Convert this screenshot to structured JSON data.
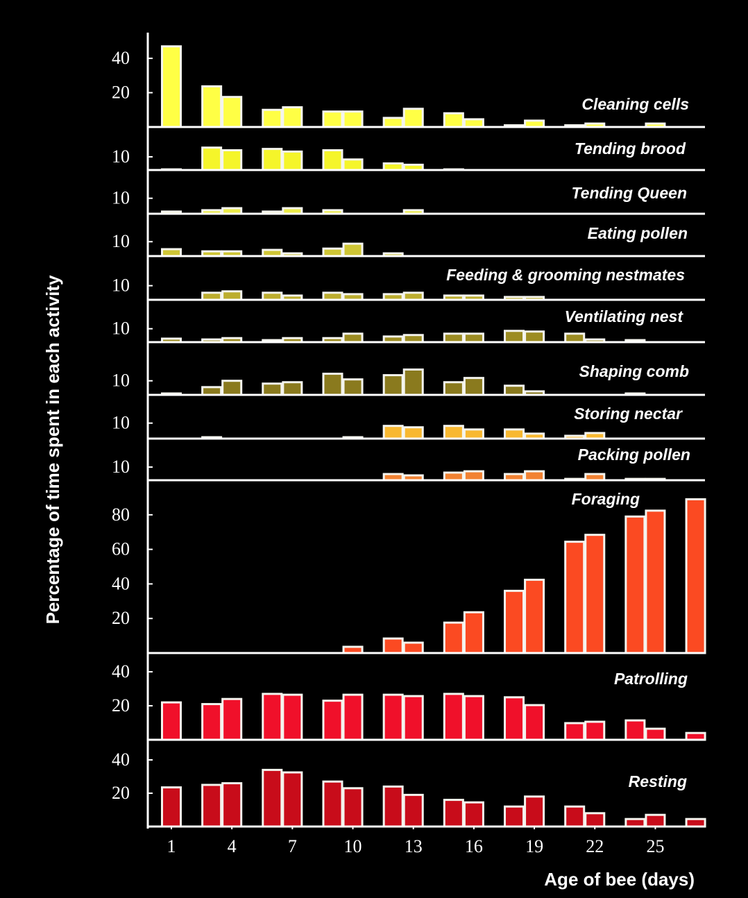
{
  "ylabel": "Percentage of time spent in each activity",
  "xlabel": "Age of bee (days)",
  "chart_data": [
    {
      "type": "bar",
      "title": "Cleaning cells",
      "color": "#ffff45",
      "x": [
        1,
        3,
        4,
        6,
        7,
        9,
        10,
        12,
        13,
        15,
        16,
        18,
        19,
        21,
        22,
        25
      ],
      "values": [
        47,
        23.7,
        17.5,
        10,
        11.5,
        9,
        9,
        5.3,
        10.6,
        8,
        4.5,
        1,
        3.7,
        1,
        2,
        2
      ],
      "ylim": [
        0,
        55
      ],
      "yticks": [
        20,
        40
      ]
    },
    {
      "type": "bar",
      "title": "Tending brood",
      "color": "#f5f52a",
      "x": [
        1,
        3,
        4,
        6,
        7,
        9,
        10,
        12,
        13,
        15
      ],
      "values": [
        0.5,
        17,
        15,
        16,
        14,
        15,
        8,
        5,
        4,
        0.5
      ],
      "ylim": [
        0,
        30
      ],
      "yticks": [
        10
      ]
    },
    {
      "type": "bar",
      "title": "Tending Queen",
      "color": "#ecec4a",
      "x": [
        1,
        3,
        4,
        6,
        7,
        9,
        13
      ],
      "values": [
        1.4,
        2.3,
        3.6,
        1.4,
        3.6,
        2.3,
        2.3
      ],
      "ylim": [
        0,
        26
      ],
      "yticks": [
        10
      ]
    },
    {
      "type": "bar",
      "title": "Eating pollen",
      "color": "#cfc635",
      "x": [
        1,
        3,
        4,
        6,
        7,
        9,
        10,
        12
      ],
      "values": [
        4.8,
        3.3,
        3.3,
        4.3,
        1.9,
        5.2,
        8.6,
        1.9
      ],
      "ylim": [
        0,
        27
      ],
      "yticks": [
        10
      ]
    },
    {
      "type": "bar",
      "title": "Feeding & grooming nestmates",
      "color": "#bcad2e",
      "x": [
        3,
        4,
        6,
        7,
        9,
        10,
        12,
        13,
        15,
        16,
        18,
        19
      ],
      "values": [
        5,
        6,
        5,
        3,
        5,
        4,
        4,
        5,
        3,
        3,
        2,
        2
      ],
      "ylim": [
        0,
        29
      ],
      "yticks": [
        10
      ]
    },
    {
      "type": "bar",
      "title": "Ventilating nest",
      "color": "#9c8c22",
      "x": [
        1,
        3,
        4,
        6,
        7,
        9,
        10,
        12,
        13,
        15,
        16,
        18,
        19,
        21,
        22,
        24
      ],
      "values": [
        2.6,
        2,
        3,
        1.5,
        3,
        3,
        6.3,
        4.2,
        5.3,
        6.3,
        6.3,
        8.4,
        7.9,
        6.3,
        2,
        1.5
      ],
      "ylim": [
        0,
        29
      ],
      "yticks": [
        10
      ]
    },
    {
      "type": "bar",
      "title": "Shaping comb",
      "color": "#8a7a1e",
      "x": [
        1,
        3,
        4,
        6,
        7,
        9,
        10,
        12,
        13,
        15,
        16,
        18,
        19,
        24
      ],
      "values": [
        1,
        5.5,
        10,
        8,
        9,
        15,
        11,
        14,
        18,
        9,
        12,
        6.5,
        2.5,
        1
      ],
      "ylim": [
        0,
        35
      ],
      "yticks": [
        10
      ]
    },
    {
      "type": "bar",
      "title": "Storing nectar",
      "color": "#f8b830",
      "x": [
        3,
        10,
        12,
        13,
        15,
        16,
        18,
        19,
        21,
        22
      ],
      "values": [
        0.9,
        0.9,
        8.2,
        7.3,
        8.2,
        5.9,
        5.9,
        3.2,
        1.8,
        3.6
      ],
      "ylim": [
        0,
        26
      ],
      "yticks": [
        10
      ]
    },
    {
      "type": "bar",
      "title": "Packing pollen",
      "color": "#f28232",
      "x": [
        12,
        13,
        15,
        16,
        18,
        19,
        21,
        22,
        24,
        25
      ],
      "values": [
        4.7,
        3.7,
        5.8,
        6.8,
        4.7,
        6.8,
        1,
        4.7,
        1,
        1
      ],
      "ylim": [
        0,
        29
      ],
      "yticks": [
        10
      ]
    },
    {
      "type": "bar",
      "title": "Foraging",
      "color": "#fb4a22",
      "x": [
        10,
        12,
        13,
        15,
        16,
        18,
        19,
        21,
        22,
        24,
        25,
        27
      ],
      "values": [
        3.6,
        8.4,
        6,
        17.6,
        23.6,
        36,
        42.4,
        64.4,
        68.4,
        79,
        82.4,
        89
      ],
      "ylim": [
        0,
        98
      ],
      "yticks": [
        20,
        40,
        60,
        80
      ]
    },
    {
      "type": "bar",
      "title": "Patrolling",
      "color": "#f0102a",
      "x": [
        1,
        3,
        4,
        6,
        7,
        9,
        10,
        12,
        13,
        15,
        16,
        18,
        19,
        21,
        22,
        24,
        25,
        27
      ],
      "values": [
        22,
        21,
        24,
        27,
        26.5,
        23,
        26.5,
        26.5,
        25.7,
        27,
        25.7,
        25,
        20.4,
        9.8,
        10.6,
        11.4,
        6.5,
        4
      ],
      "ylim": [
        0,
        49
      ],
      "yticks": [
        20,
        40
      ]
    },
    {
      "type": "bar",
      "title": "Resting",
      "color": "#c80c1a",
      "x": [
        1,
        3,
        4,
        6,
        7,
        9,
        10,
        12,
        13,
        15,
        16,
        18,
        19,
        21,
        22,
        24,
        25,
        27
      ],
      "values": [
        23.5,
        25,
        26,
        34,
        32.5,
        27,
        23,
        24,
        19,
        16,
        14.5,
        12,
        18,
        12,
        8,
        4.5,
        7,
        4.5
      ],
      "ylim": [
        0,
        50
      ],
      "yticks": [
        20,
        40
      ],
      "xlim": [
        -0.17,
        27.6
      ],
      "xticks": [
        1,
        4,
        7,
        10,
        13,
        16,
        19,
        22,
        25
      ]
    }
  ]
}
